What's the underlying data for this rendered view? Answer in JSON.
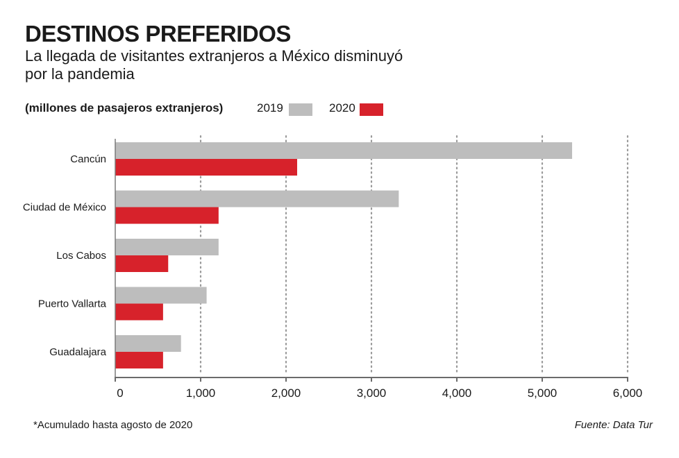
{
  "header": {
    "title": "DESTINOS PREFERIDOS",
    "subtitle": "La llegada de visitantes extranjeros a México disminuyó por la pandemia"
  },
  "footer": {
    "note": "*Acumulado  hasta agosto de 2020",
    "source": "Fuente: Data Tur"
  },
  "colors": {
    "series_2019": "#bdbdbd",
    "series_2020": "#d7222b",
    "grid": "#9a9a9a"
  },
  "chart_data": {
    "type": "bar",
    "orientation": "horizontal",
    "title": "DESTINOS PREFERIDOS",
    "subtitle": "La llegada de visitantes extranjeros a México disminuyó por la pandemia",
    "units_label": "(millones de pasajeros extranjeros)",
    "categories": [
      "Cancún",
      "Ciudad de México",
      "Los Cabos",
      "Puerto Vallarta",
      "Guadalajara"
    ],
    "series": [
      {
        "name": "2019",
        "color": "#bdbdbd",
        "values": [
          5350,
          3320,
          1210,
          1070,
          770
        ]
      },
      {
        "name": "2020",
        "color": "#d7222b",
        "values": [
          2130,
          1210,
          620,
          560,
          560
        ]
      }
    ],
    "xlim": [
      0,
      6000
    ],
    "xticks": [
      0,
      1000,
      2000,
      3000,
      4000,
      5000,
      6000
    ],
    "xtick_labels": [
      "0",
      "1,000",
      "2,000",
      "3,000",
      "4,000",
      "5,000",
      "6,000"
    ],
    "grid": "vertical-dotted",
    "legend_position": "top"
  }
}
